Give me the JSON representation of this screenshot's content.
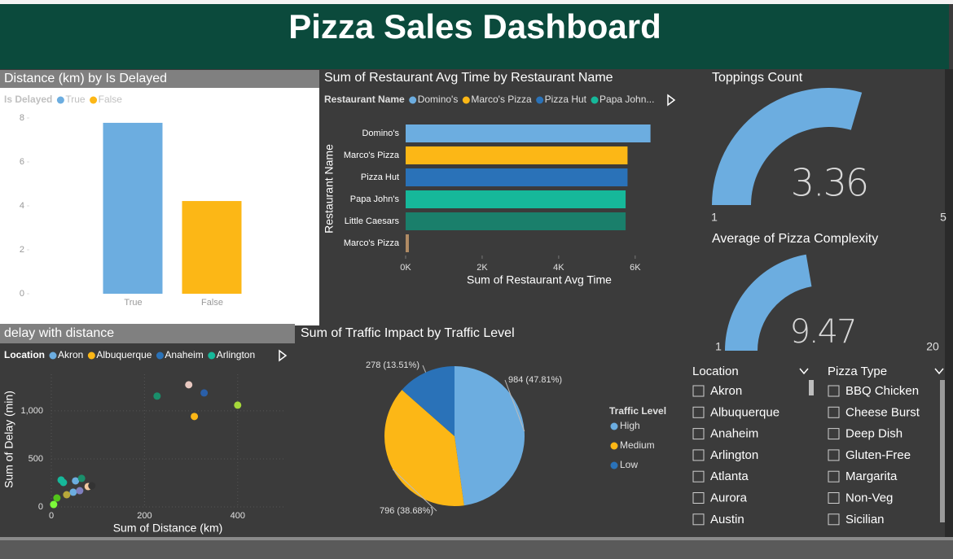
{
  "title": "Pizza Sales Dashboard",
  "chart_data": [
    {
      "type": "bar",
      "title": "Distance (km) by Is Delayed",
      "legend_title": "Is Delayed",
      "categories": [
        "True",
        "False"
      ],
      "values": [
        7.78,
        4.22
      ],
      "colors": [
        "#6cade0",
        "#fcb716"
      ],
      "ylim": [
        0,
        8
      ],
      "yticks": [
        0,
        2,
        4,
        6,
        8
      ],
      "grid": false
    },
    {
      "type": "bar",
      "orientation": "horizontal",
      "title": "Sum of Restaurant Avg Time by Restaurant Name",
      "legend_title": "Restaurant Name",
      "legend": [
        "Domino's",
        "Marco's Pizza",
        "Pizza Hut",
        "Papa John..."
      ],
      "categories": [
        "Domino's",
        "Marco's Pizza",
        "Pizza Hut",
        "Papa John's",
        "Little Caesars",
        "Marco's Pizza"
      ],
      "values": [
        6400,
        5800,
        5800,
        5750,
        5750,
        85
      ],
      "colors": [
        "#6cade0",
        "#fcb716",
        "#2a72b8",
        "#16b89a",
        "#1a7f6b",
        "#b08b64"
      ],
      "xlabel": "Sum of Restaurant Avg Time",
      "ylabel": "Restaurant Name",
      "xlim": [
        0,
        6600
      ],
      "xticks": [
        {
          "value": 0,
          "label": "0K"
        },
        {
          "value": 2000,
          "label": "2K"
        },
        {
          "value": 4000,
          "label": "4K"
        },
        {
          "value": 6000,
          "label": "6K"
        }
      ]
    },
    {
      "type": "gauge",
      "title": "Toppings Count",
      "value": 3.36,
      "min": 1,
      "max": 5,
      "color": "#6cade0"
    },
    {
      "type": "gauge",
      "title": "Average of Pizza Complexity",
      "value": 9.47,
      "min": 1,
      "max": 20,
      "color": "#6cade0"
    },
    {
      "type": "scatter",
      "title": "delay with distance",
      "legend_title": "Location",
      "legend": [
        "Akron",
        "Albuquerque",
        "Anaheim",
        "Arlington"
      ],
      "legend_colors": [
        "#6cade0",
        "#fcb716",
        "#2a72b8",
        "#16b89a"
      ],
      "x": [
        295,
        328,
        227,
        400,
        307,
        26,
        52,
        65,
        79,
        87,
        47,
        61,
        12,
        33,
        5,
        21
      ],
      "values": [
        1271,
        1186,
        1153,
        1059,
        941,
        254,
        271,
        297,
        212,
        220,
        153,
        169,
        93,
        127,
        25,
        280
      ],
      "colors": [
        "#e8c8c0",
        "#2a5fa8",
        "#1a8f6b",
        "#a6d83a",
        "#fcb716",
        "#16b89a",
        "#6cade0",
        "#1a8f6b",
        "#f2c9a0",
        "#333333",
        "#6cade0",
        "#7f7fbf",
        "#52c41a",
        "#b8a83a",
        "#7cfc3a",
        "#16b89a"
      ],
      "xlabel": "Sum of Distance (km)",
      "ylabel": "Sum of Delay (min)",
      "xlim": [
        0,
        500
      ],
      "xticks": [
        0,
        200,
        400
      ],
      "ylim": [
        0,
        1380
      ],
      "yticks": [
        0,
        500,
        {
          "value": 1000,
          "label": "1,000"
        }
      ],
      "grid": true
    },
    {
      "type": "pie",
      "title": "Sum of Traffic Impact by Traffic Level",
      "legend_title": "Traffic Level",
      "categories": [
        "High",
        "Medium",
        "Low"
      ],
      "values": [
        984,
        796,
        278
      ],
      "value_labels": [
        "984 (47.81%)",
        "796 (38.68%)",
        "278 (13.51%)"
      ],
      "colors": [
        "#6cade0",
        "#fcb716",
        "#2a72b8"
      ]
    }
  ],
  "slicers": [
    {
      "title": "Location",
      "items": [
        "Akron",
        "Albuquerque",
        "Anaheim",
        "Arlington",
        "Atlanta",
        "Aurora",
        "Austin"
      ]
    },
    {
      "title": "Pizza Type",
      "items": [
        "BBQ Chicken",
        "Cheese Burst",
        "Deep Dish",
        "Gluten-Free",
        "Margarita",
        "Non-Veg",
        "Sicilian"
      ]
    }
  ]
}
